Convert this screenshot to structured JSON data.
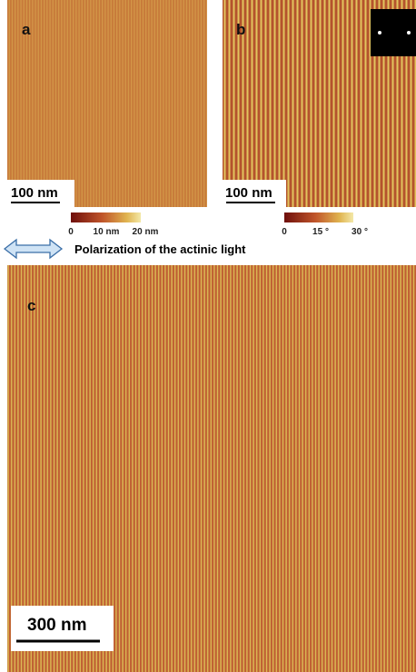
{
  "panels": [
    {
      "label": "a",
      "scale_bar": "100 nm"
    },
    {
      "label": "b",
      "scale_bar": "100 nm"
    },
    {
      "label": "c",
      "scale_bar": "300 nm"
    }
  ],
  "colorbars": [
    {
      "ticks": [
        "0",
        "10 nm",
        "20 nm"
      ]
    },
    {
      "ticks": [
        "0",
        "15 °",
        "30 °"
      ]
    }
  ],
  "caption": "Polarization of the actinic light"
}
